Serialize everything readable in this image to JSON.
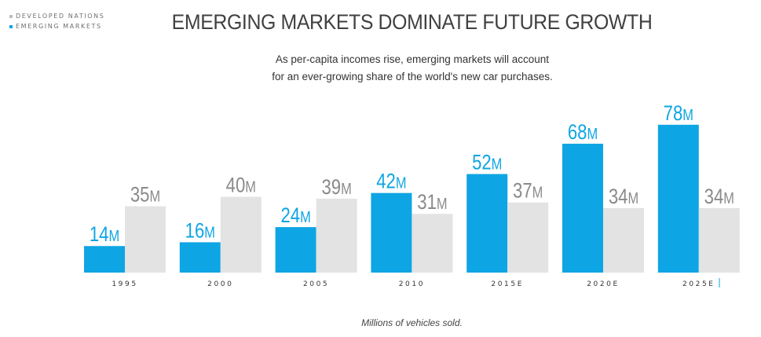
{
  "title": "EMERGING MARKETS DOMINATE FUTURE GROWTH",
  "subtitle_lines": [
    "As per-capita incomes rise, emerging markets will account",
    "for an ever-growing share of the world's new car purchases."
  ],
  "footnote": "Millions of vehicles sold.",
  "legend": [
    {
      "label": "DEVELOPED NATIONS",
      "color": "#bdbdbd"
    },
    {
      "label": "EMERGING MARKETS",
      "color": "#0ea5e4"
    }
  ],
  "chart_data": {
    "type": "bar",
    "categories": [
      "1995",
      "2000",
      "2005",
      "2010",
      "2015E",
      "2020E",
      "2025E"
    ],
    "series": [
      {
        "name": "EMERGING MARKETS",
        "values": [
          14,
          16,
          24,
          42,
          52,
          68,
          78
        ],
        "labels": [
          "14M",
          "16M",
          "24M",
          "42M",
          "52M",
          "68M",
          "78M"
        ],
        "color": "#0ea5e4"
      },
      {
        "name": "DEVELOPED NATIONS",
        "values": [
          35,
          40,
          39,
          31,
          37,
          34,
          34
        ],
        "labels": [
          "35M",
          "40M",
          "39M",
          "31M",
          "37M",
          "34M",
          "34M"
        ],
        "color": "#e3e3e3"
      }
    ],
    "label_colors": {
      "emerging": "#0ea5e4",
      "developed": "#8a8a8a"
    },
    "ylim": [
      0,
      80
    ],
    "unit": "M"
  }
}
